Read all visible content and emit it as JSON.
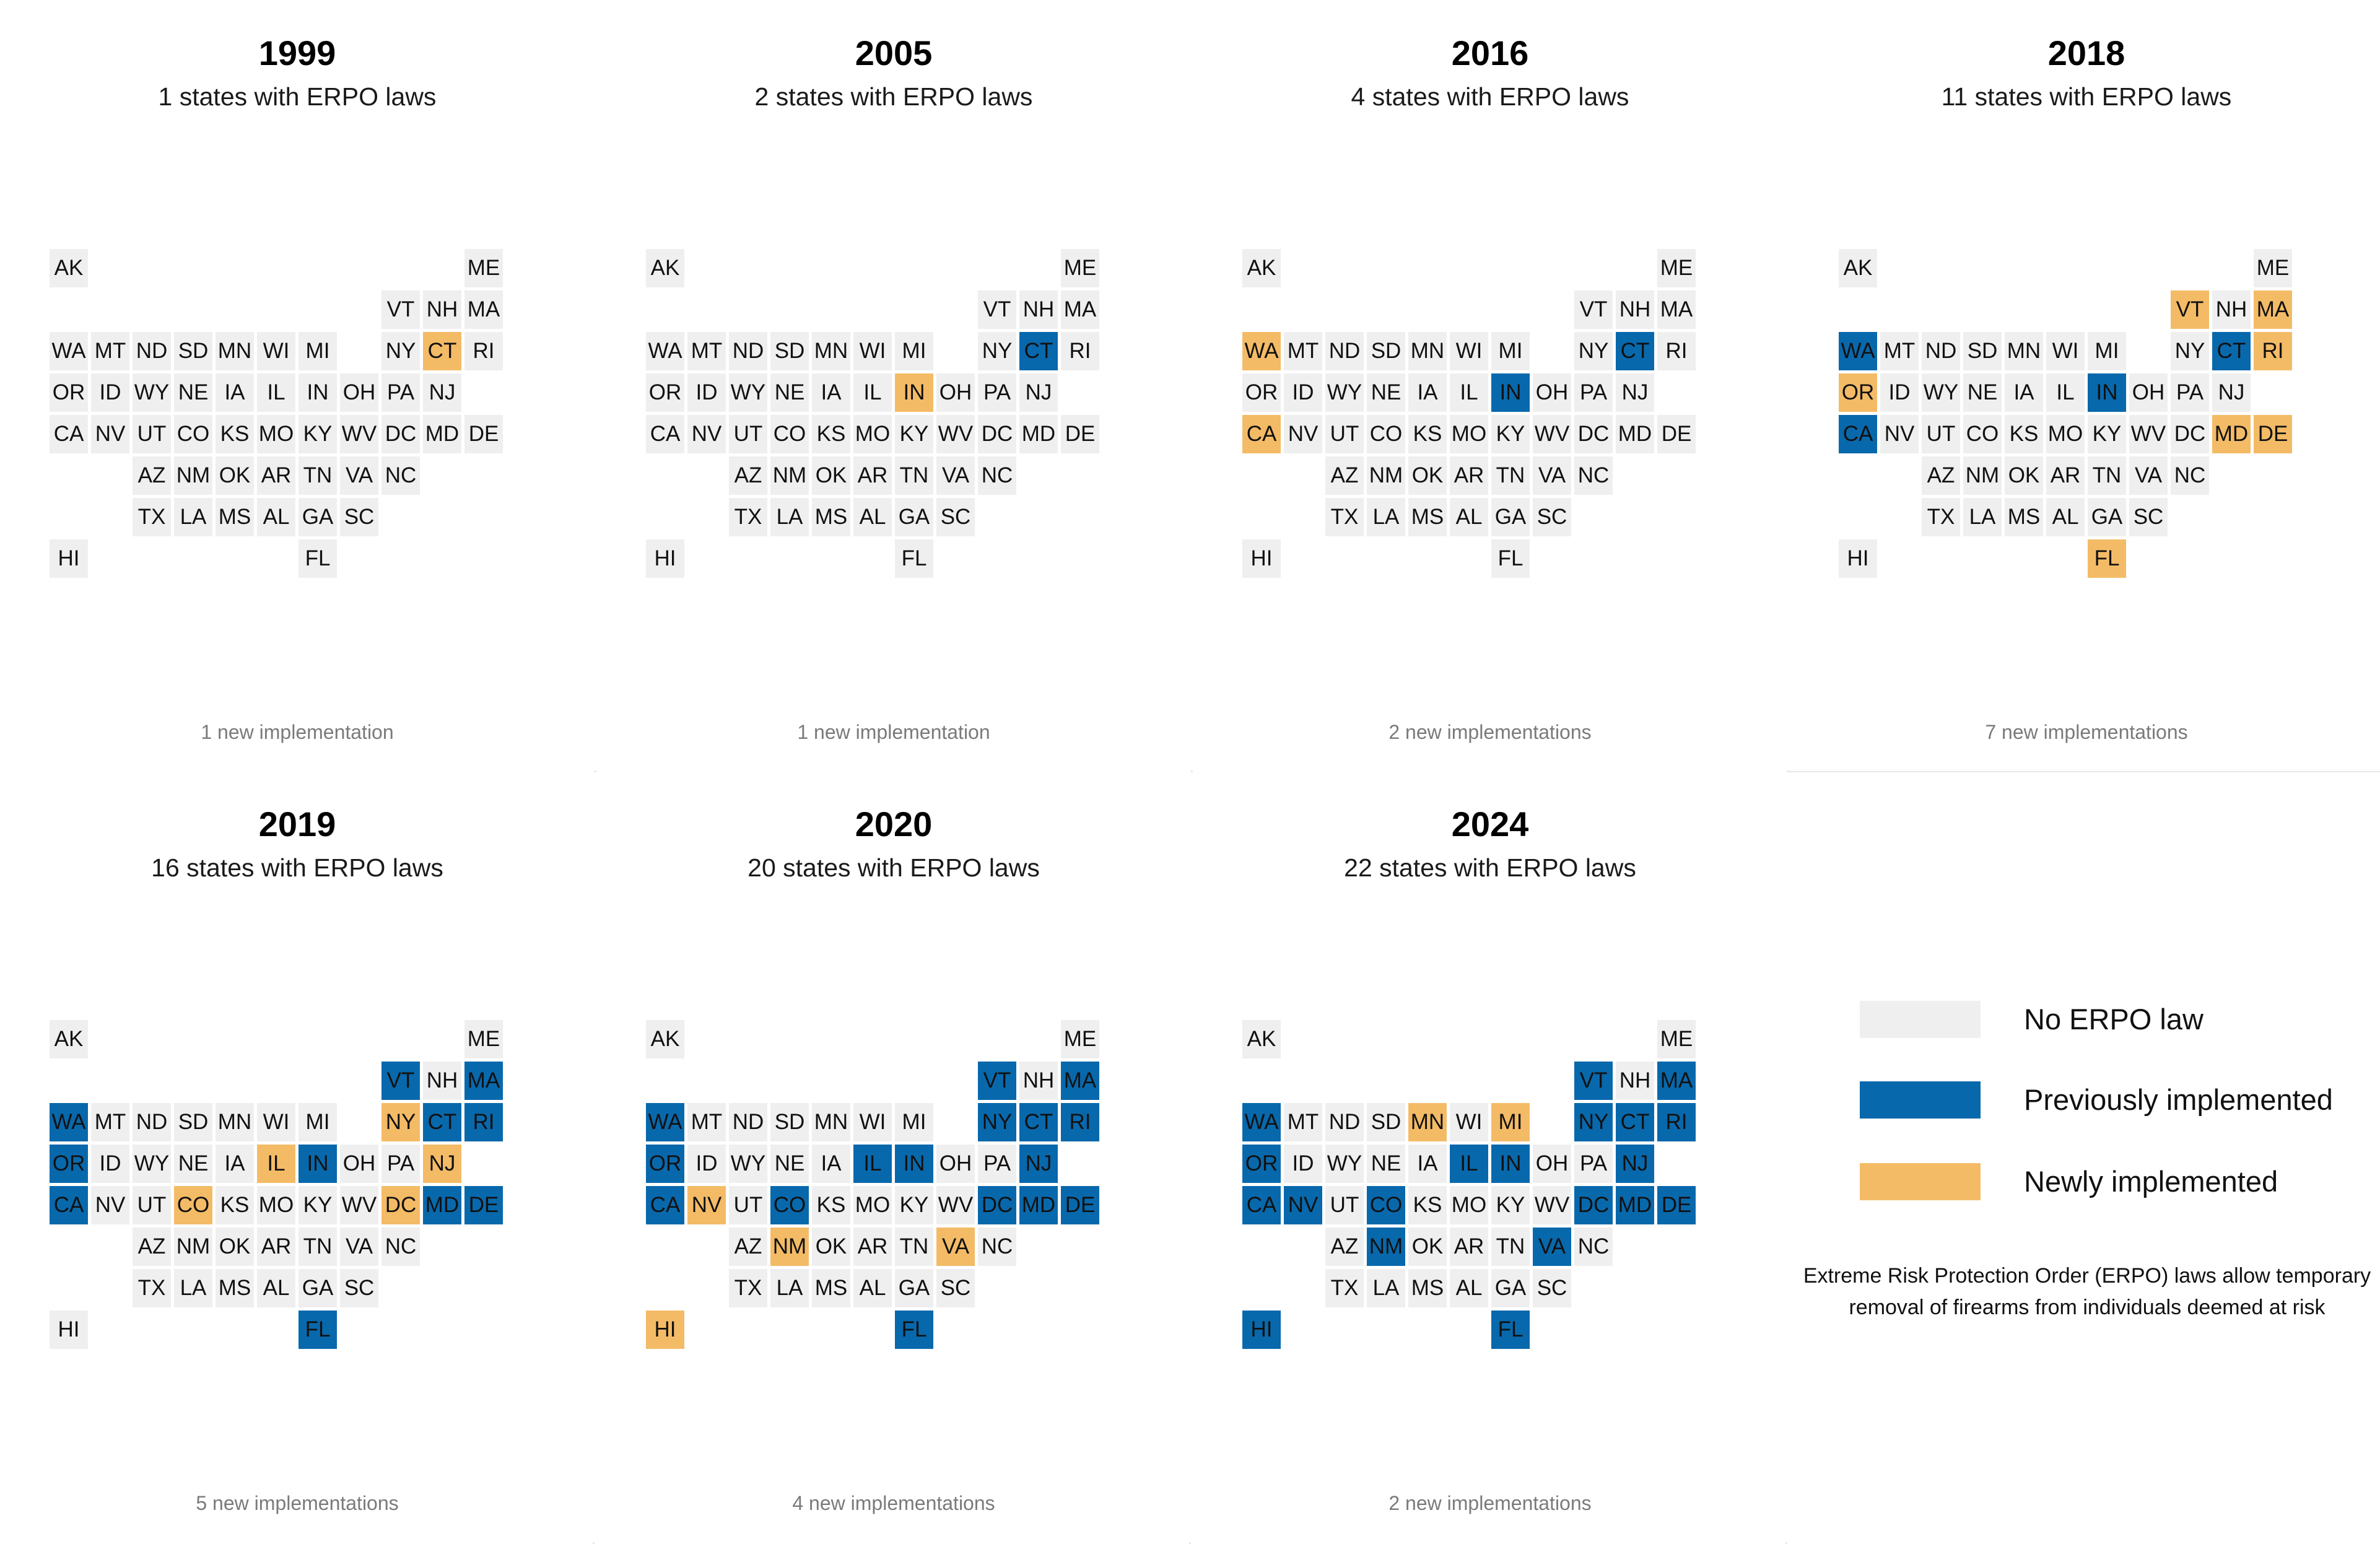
{
  "chart_data": {
    "type": "tile-grid map",
    "states": [
      [
        "AK",
        0,
        0
      ],
      [
        "ME",
        0,
        10
      ],
      [
        "VT",
        1,
        8
      ],
      [
        "NH",
        1,
        9
      ],
      [
        "MA",
        1,
        10
      ],
      [
        "WA",
        2,
        0
      ],
      [
        "MT",
        2,
        1
      ],
      [
        "ND",
        2,
        2
      ],
      [
        "SD",
        2,
        3
      ],
      [
        "MN",
        2,
        4
      ],
      [
        "WI",
        2,
        5
      ],
      [
        "MI",
        2,
        6
      ],
      [
        "NY",
        2,
        8
      ],
      [
        "CT",
        2,
        9
      ],
      [
        "RI",
        2,
        10
      ],
      [
        "OR",
        3,
        0
      ],
      [
        "ID",
        3,
        1
      ],
      [
        "WY",
        3,
        2
      ],
      [
        "NE",
        3,
        3
      ],
      [
        "IA",
        3,
        4
      ],
      [
        "IL",
        3,
        5
      ],
      [
        "IN",
        3,
        6
      ],
      [
        "OH",
        3,
        7
      ],
      [
        "PA",
        3,
        8
      ],
      [
        "NJ",
        3,
        9
      ],
      [
        "CA",
        4,
        0
      ],
      [
        "NV",
        4,
        1
      ],
      [
        "UT",
        4,
        2
      ],
      [
        "CO",
        4,
        3
      ],
      [
        "KS",
        4,
        4
      ],
      [
        "MO",
        4,
        5
      ],
      [
        "KY",
        4,
        6
      ],
      [
        "WV",
        4,
        7
      ],
      [
        "DC",
        4,
        8
      ],
      [
        "MD",
        4,
        9
      ],
      [
        "DE",
        4,
        10
      ],
      [
        "AZ",
        5,
        2
      ],
      [
        "NM",
        5,
        3
      ],
      [
        "OK",
        5,
        4
      ],
      [
        "AR",
        5,
        5
      ],
      [
        "TN",
        5,
        6
      ],
      [
        "VA",
        5,
        7
      ],
      [
        "NC",
        5,
        8
      ],
      [
        "TX",
        6,
        2
      ],
      [
        "LA",
        6,
        3
      ],
      [
        "MS",
        6,
        4
      ],
      [
        "AL",
        6,
        5
      ],
      [
        "GA",
        6,
        6
      ],
      [
        "SC",
        6,
        7
      ],
      [
        "HI",
        7,
        0
      ],
      [
        "FL",
        7,
        6
      ]
    ],
    "panels": [
      {
        "year": "1999",
        "subtitle": "1 states with ERPO laws",
        "footer": "1 new implementation",
        "new": [
          "CT"
        ],
        "previous": []
      },
      {
        "year": "2005",
        "subtitle": "2 states with ERPO laws",
        "footer": "1 new implementation",
        "new": [
          "IN"
        ],
        "previous": [
          "CT"
        ]
      },
      {
        "year": "2016",
        "subtitle": "4 states with ERPO laws",
        "footer": "2 new implementations",
        "new": [
          "WA",
          "CA"
        ],
        "previous": [
          "CT",
          "IN"
        ]
      },
      {
        "year": "2018",
        "subtitle": "11 states with ERPO laws",
        "footer": "7 new implementations",
        "new": [
          "VT",
          "MA",
          "RI",
          "OR",
          "MD",
          "DE",
          "FL"
        ],
        "previous": [
          "WA",
          "CT",
          "IN",
          "CA"
        ]
      },
      {
        "year": "2019",
        "subtitle": "16 states with ERPO laws",
        "footer": "5 new implementations",
        "new": [
          "NY",
          "IL",
          "NJ",
          "CO",
          "DC"
        ],
        "previous": [
          "VT",
          "MA",
          "WA",
          "CT",
          "RI",
          "OR",
          "IN",
          "CA",
          "MD",
          "DE",
          "FL"
        ]
      },
      {
        "year": "2020",
        "subtitle": "20 states with ERPO laws",
        "footer": "4 new implementations",
        "new": [
          "NV",
          "NM",
          "VA",
          "HI"
        ],
        "previous": [
          "VT",
          "MA",
          "WA",
          "NY",
          "CT",
          "RI",
          "OR",
          "IL",
          "IN",
          "NJ",
          "CA",
          "CO",
          "DC",
          "MD",
          "DE",
          "FL"
        ]
      },
      {
        "year": "2024",
        "subtitle": "22 states with ERPO laws",
        "footer": "2 new implementations",
        "new": [
          "MN",
          "MI"
        ],
        "previous": [
          "VT",
          "MA",
          "WA",
          "NY",
          "CT",
          "RI",
          "OR",
          "IL",
          "IN",
          "NJ",
          "CA",
          "NV",
          "CO",
          "DC",
          "MD",
          "DE",
          "NM",
          "VA",
          "HI",
          "FL"
        ]
      }
    ],
    "legend": [
      {
        "label": "No ERPO law",
        "color": "#efefef"
      },
      {
        "label": "Previously implemented",
        "color": "#0868ac"
      },
      {
        "label": "Newly implemented",
        "color": "#f4bb66"
      }
    ],
    "note": "Extreme Risk Protection Order (ERPO) laws allow temporary removal of firearms from individuals deemed at risk"
  },
  "colors": {
    "none": "#efefef",
    "previous": "#0868ac",
    "new": "#f4bb66",
    "divider": "#e8e8e8"
  }
}
